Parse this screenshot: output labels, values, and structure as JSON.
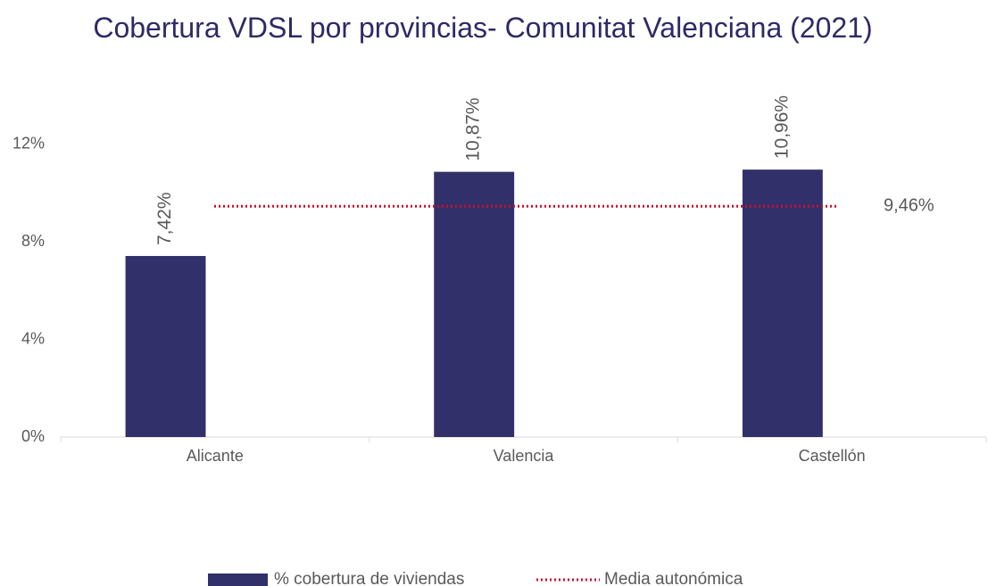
{
  "chart_data": {
    "type": "bar",
    "title": "Cobertura VDSL por provincias- Comunitat Valenciana (2021)",
    "categories": [
      "Alicante",
      "Valencia",
      "Castellón"
    ],
    "series": [
      {
        "name": "% cobertura de viviendas",
        "color": "#32306a",
        "values": [
          7.42,
          10.87,
          10.96
        ],
        "value_labels": [
          "7,42%",
          "10,87%",
          "10,96%"
        ]
      }
    ],
    "reference_line": {
      "name": "Media autonómica",
      "value": 9.46,
      "label": "9,46%",
      "color": "#c8102e"
    },
    "ylim": [
      0,
      14
    ],
    "yticks": [
      {
        "value": 0,
        "label": "0%"
      },
      {
        "value": 4,
        "label": "4%"
      },
      {
        "value": 8,
        "label": "8%"
      },
      {
        "value": 12,
        "label": "12%"
      }
    ],
    "legend": "bottom"
  }
}
